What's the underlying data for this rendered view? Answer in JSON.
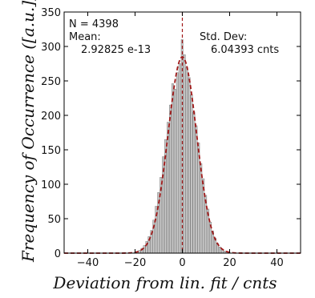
{
  "chart_data": {
    "type": "bar",
    "xlabel": "Deviation from lin. fit / cnts",
    "ylabel": "Frequency of Occurrence ([a.u.])",
    "xlim": [
      -50,
      50
    ],
    "ylim": [
      0,
      350
    ],
    "xticks": [
      -40,
      -20,
      0,
      20,
      40
    ],
    "yticks": [
      0,
      50,
      100,
      150,
      200,
      250,
      300,
      350
    ],
    "grid": false,
    "bar_width": 1,
    "x": [
      -20,
      -19,
      -18,
      -17,
      -16,
      -15,
      -14,
      -13,
      -12,
      -11,
      -10,
      -9,
      -8,
      -7,
      -6,
      -5,
      -4,
      -3,
      -2,
      -1,
      0,
      1,
      2,
      3,
      4,
      5,
      6,
      7,
      8,
      9,
      10,
      11,
      12,
      13,
      14,
      15,
      16,
      17,
      18,
      19,
      20
    ],
    "values": [
      1,
      2,
      4,
      7,
      11,
      17,
      24,
      33,
      48,
      68,
      88,
      110,
      140,
      165,
      190,
      215,
      246,
      238,
      262,
      275,
      310,
      288,
      270,
      255,
      230,
      205,
      185,
      160,
      130,
      108,
      84,
      64,
      45,
      32,
      22,
      14,
      9,
      5,
      3,
      2,
      1
    ],
    "fit_curve": {
      "type": "gaussian",
      "mean": 0,
      "sigma": 6.04393,
      "amplitude": 285,
      "color": "#a01818",
      "style": "dashed"
    },
    "reference_line": {
      "x": 0,
      "color": "#a01818",
      "style": "dashed"
    },
    "bar_color": "#c8c8c8",
    "annotations": {
      "n_label": "N = 4398",
      "mean_label": "Mean:",
      "mean_value": "2.92825 e-13",
      "std_label": "Std. Dev:",
      "std_value": "6.04393 cnts"
    }
  }
}
